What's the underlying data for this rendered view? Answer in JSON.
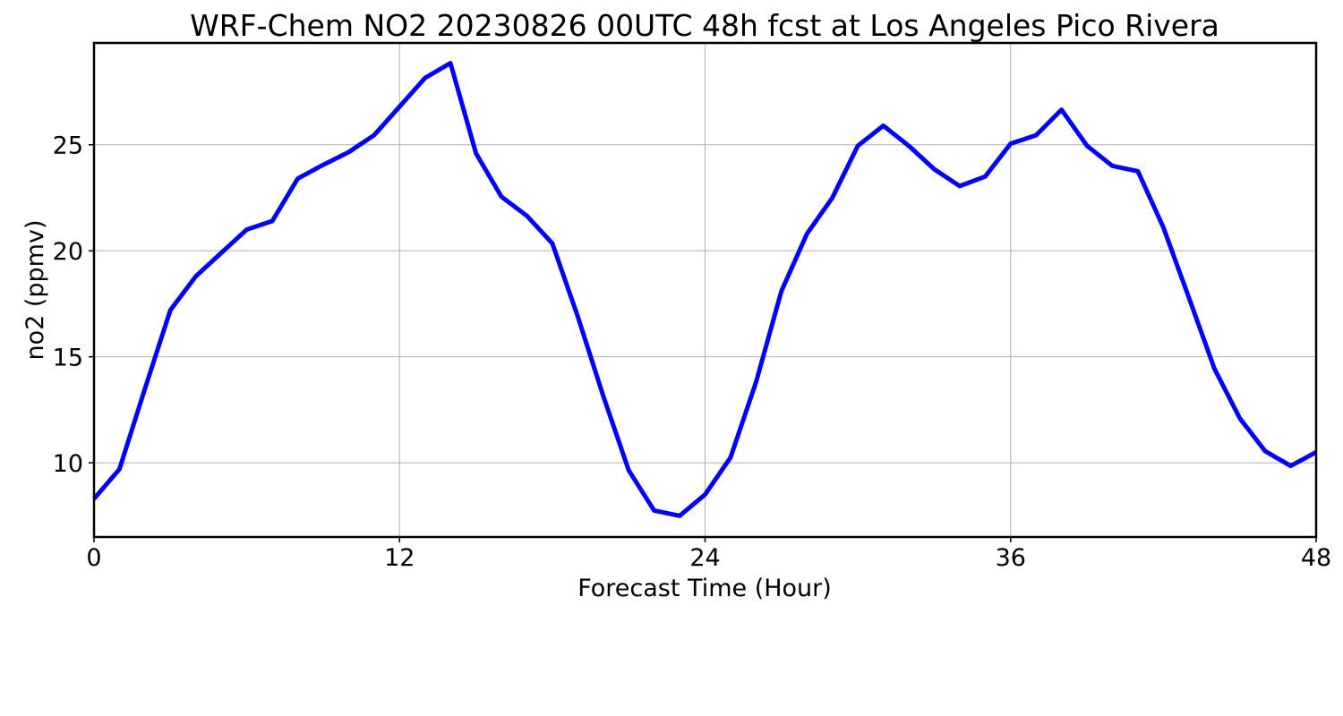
{
  "chart_data": {
    "type": "line",
    "title": "WRF-Chem NO2  20230826 00UTC 48h fcst at Los Angeles Pico Rivera",
    "xlabel": "Forecast Time (Hour)",
    "ylabel": "no2  (ppmv)",
    "xlim": [
      0,
      48
    ],
    "ylim": [
      6.5,
      29.8
    ],
    "xticks": [
      0,
      12,
      24,
      36,
      48
    ],
    "xtick_labels": [
      "0",
      "12",
      "24",
      "36",
      "48"
    ],
    "yticks": [
      10,
      15,
      20,
      25
    ],
    "ytick_labels": [
      "10",
      "15",
      "20",
      "25"
    ],
    "grid": true,
    "legend": "none",
    "series": [
      {
        "color": "#0000ff",
        "x": [
          0,
          1,
          2,
          3,
          4,
          5,
          6,
          7,
          8,
          9,
          10,
          11,
          12,
          13,
          14,
          15,
          16,
          17,
          18,
          19,
          20,
          21,
          22,
          23,
          24,
          25,
          26,
          27,
          28,
          29,
          30,
          31,
          32,
          33,
          34,
          35,
          36,
          37,
          38,
          39,
          40,
          41,
          42,
          43,
          44,
          45,
          46,
          47,
          48
        ],
        "values": [
          8.3,
          9.7,
          13.5,
          17.2,
          18.8,
          19.9,
          21.0,
          21.4,
          23.4,
          24.05,
          24.65,
          25.45,
          26.8,
          28.15,
          28.85,
          24.6,
          22.55,
          21.65,
          20.35,
          16.9,
          13.15,
          9.65,
          7.75,
          7.5,
          8.5,
          10.25,
          13.8,
          18.1,
          20.8,
          22.5,
          24.95,
          25.9,
          24.95,
          23.85,
          23.05,
          23.5,
          25.05,
          25.45,
          26.65,
          24.95,
          24.0,
          23.75,
          21.1,
          17.8,
          14.45,
          12.1,
          10.55,
          9.85,
          10.5
        ]
      }
    ]
  }
}
